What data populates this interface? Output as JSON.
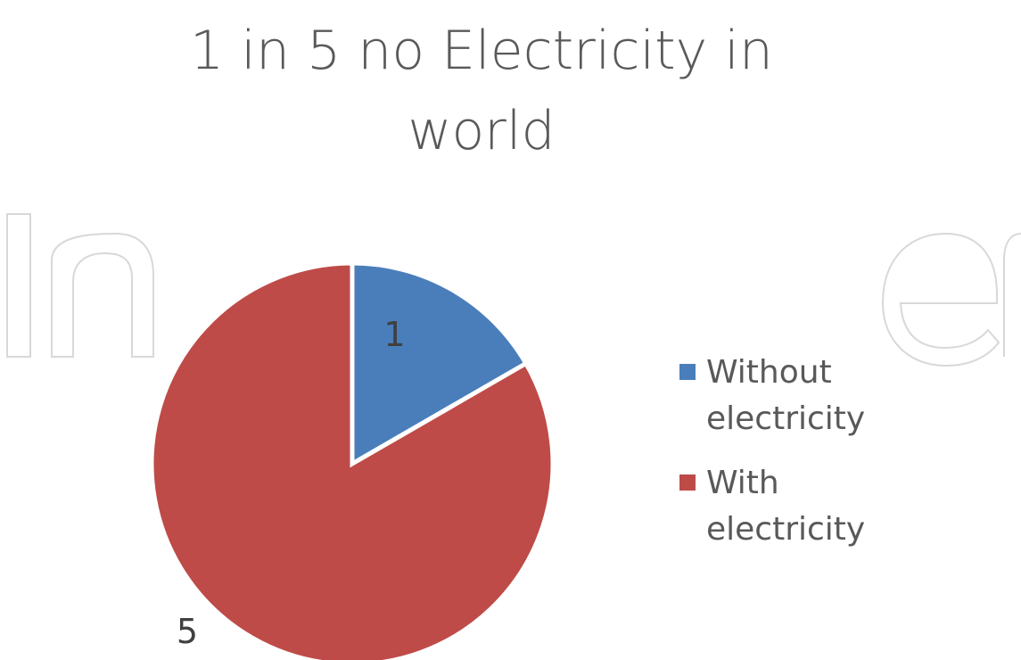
{
  "chart_data": {
    "type": "pie",
    "title": "1 in 5 no Electricity in world",
    "categories": [
      "Without electricity",
      "With electricity"
    ],
    "values": [
      1,
      5
    ],
    "data_labels": [
      "1",
      "5"
    ],
    "colors": [
      "#4a7ebb",
      "#be4b48"
    ],
    "legend_position": "right"
  },
  "watermark": "IntechOpen"
}
